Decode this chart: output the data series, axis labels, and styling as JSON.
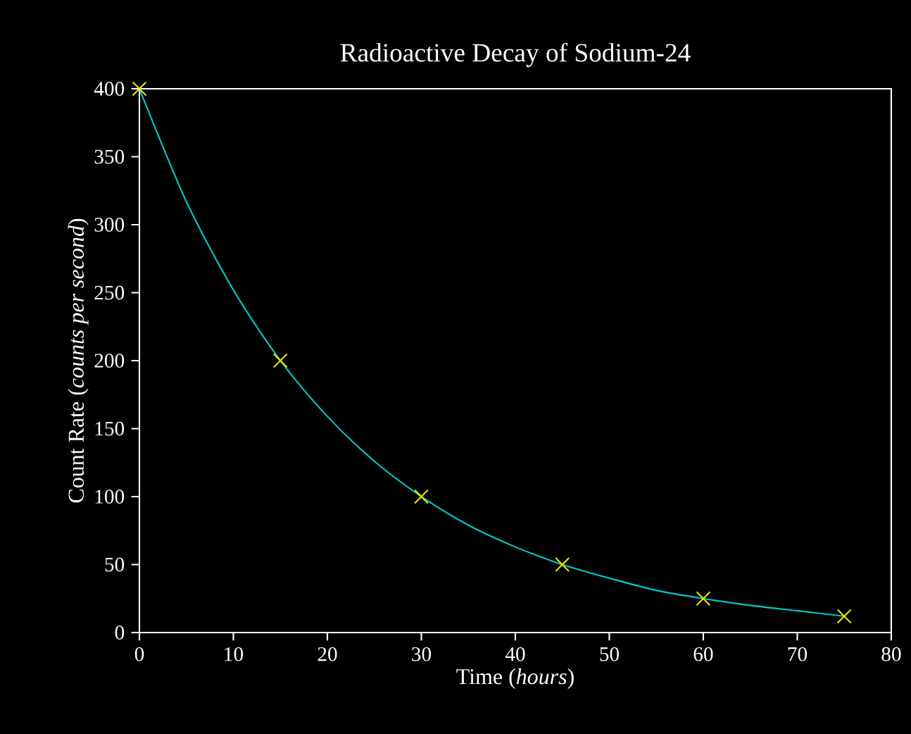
{
  "chart_data": {
    "type": "line",
    "title": "Radioactive Decay of Sodium-24",
    "xlabel": "Time (*hours*)",
    "ylabel": "Count Rate (*counts per second*)",
    "xlim": [
      0,
      80
    ],
    "xticks": [
      0,
      10,
      20,
      30,
      40,
      50,
      60,
      70,
      80
    ],
    "ylim": [
      0,
      400
    ],
    "yticks": [
      0,
      50,
      100,
      150,
      200,
      250,
      300,
      350,
      400
    ],
    "grid": false,
    "series": [
      {
        "color": "#00c8c8",
        "marker": "none",
        "x": [
          0,
          5,
          10,
          15,
          20,
          25,
          30,
          35,
          40,
          45,
          50,
          55,
          60,
          65,
          70,
          75
        ],
        "values": [
          400,
          317,
          252,
          200,
          159,
          126,
          100,
          79,
          63,
          50,
          40,
          31,
          25,
          20,
          16,
          12
        ]
      },
      {
        "type": "scatter",
        "color": "#e6e600",
        "marker": "cross",
        "x": [
          0,
          15,
          30,
          45,
          60,
          75
        ],
        "values": [
          400,
          200,
          100,
          50,
          25,
          12
        ]
      }
    ]
  }
}
